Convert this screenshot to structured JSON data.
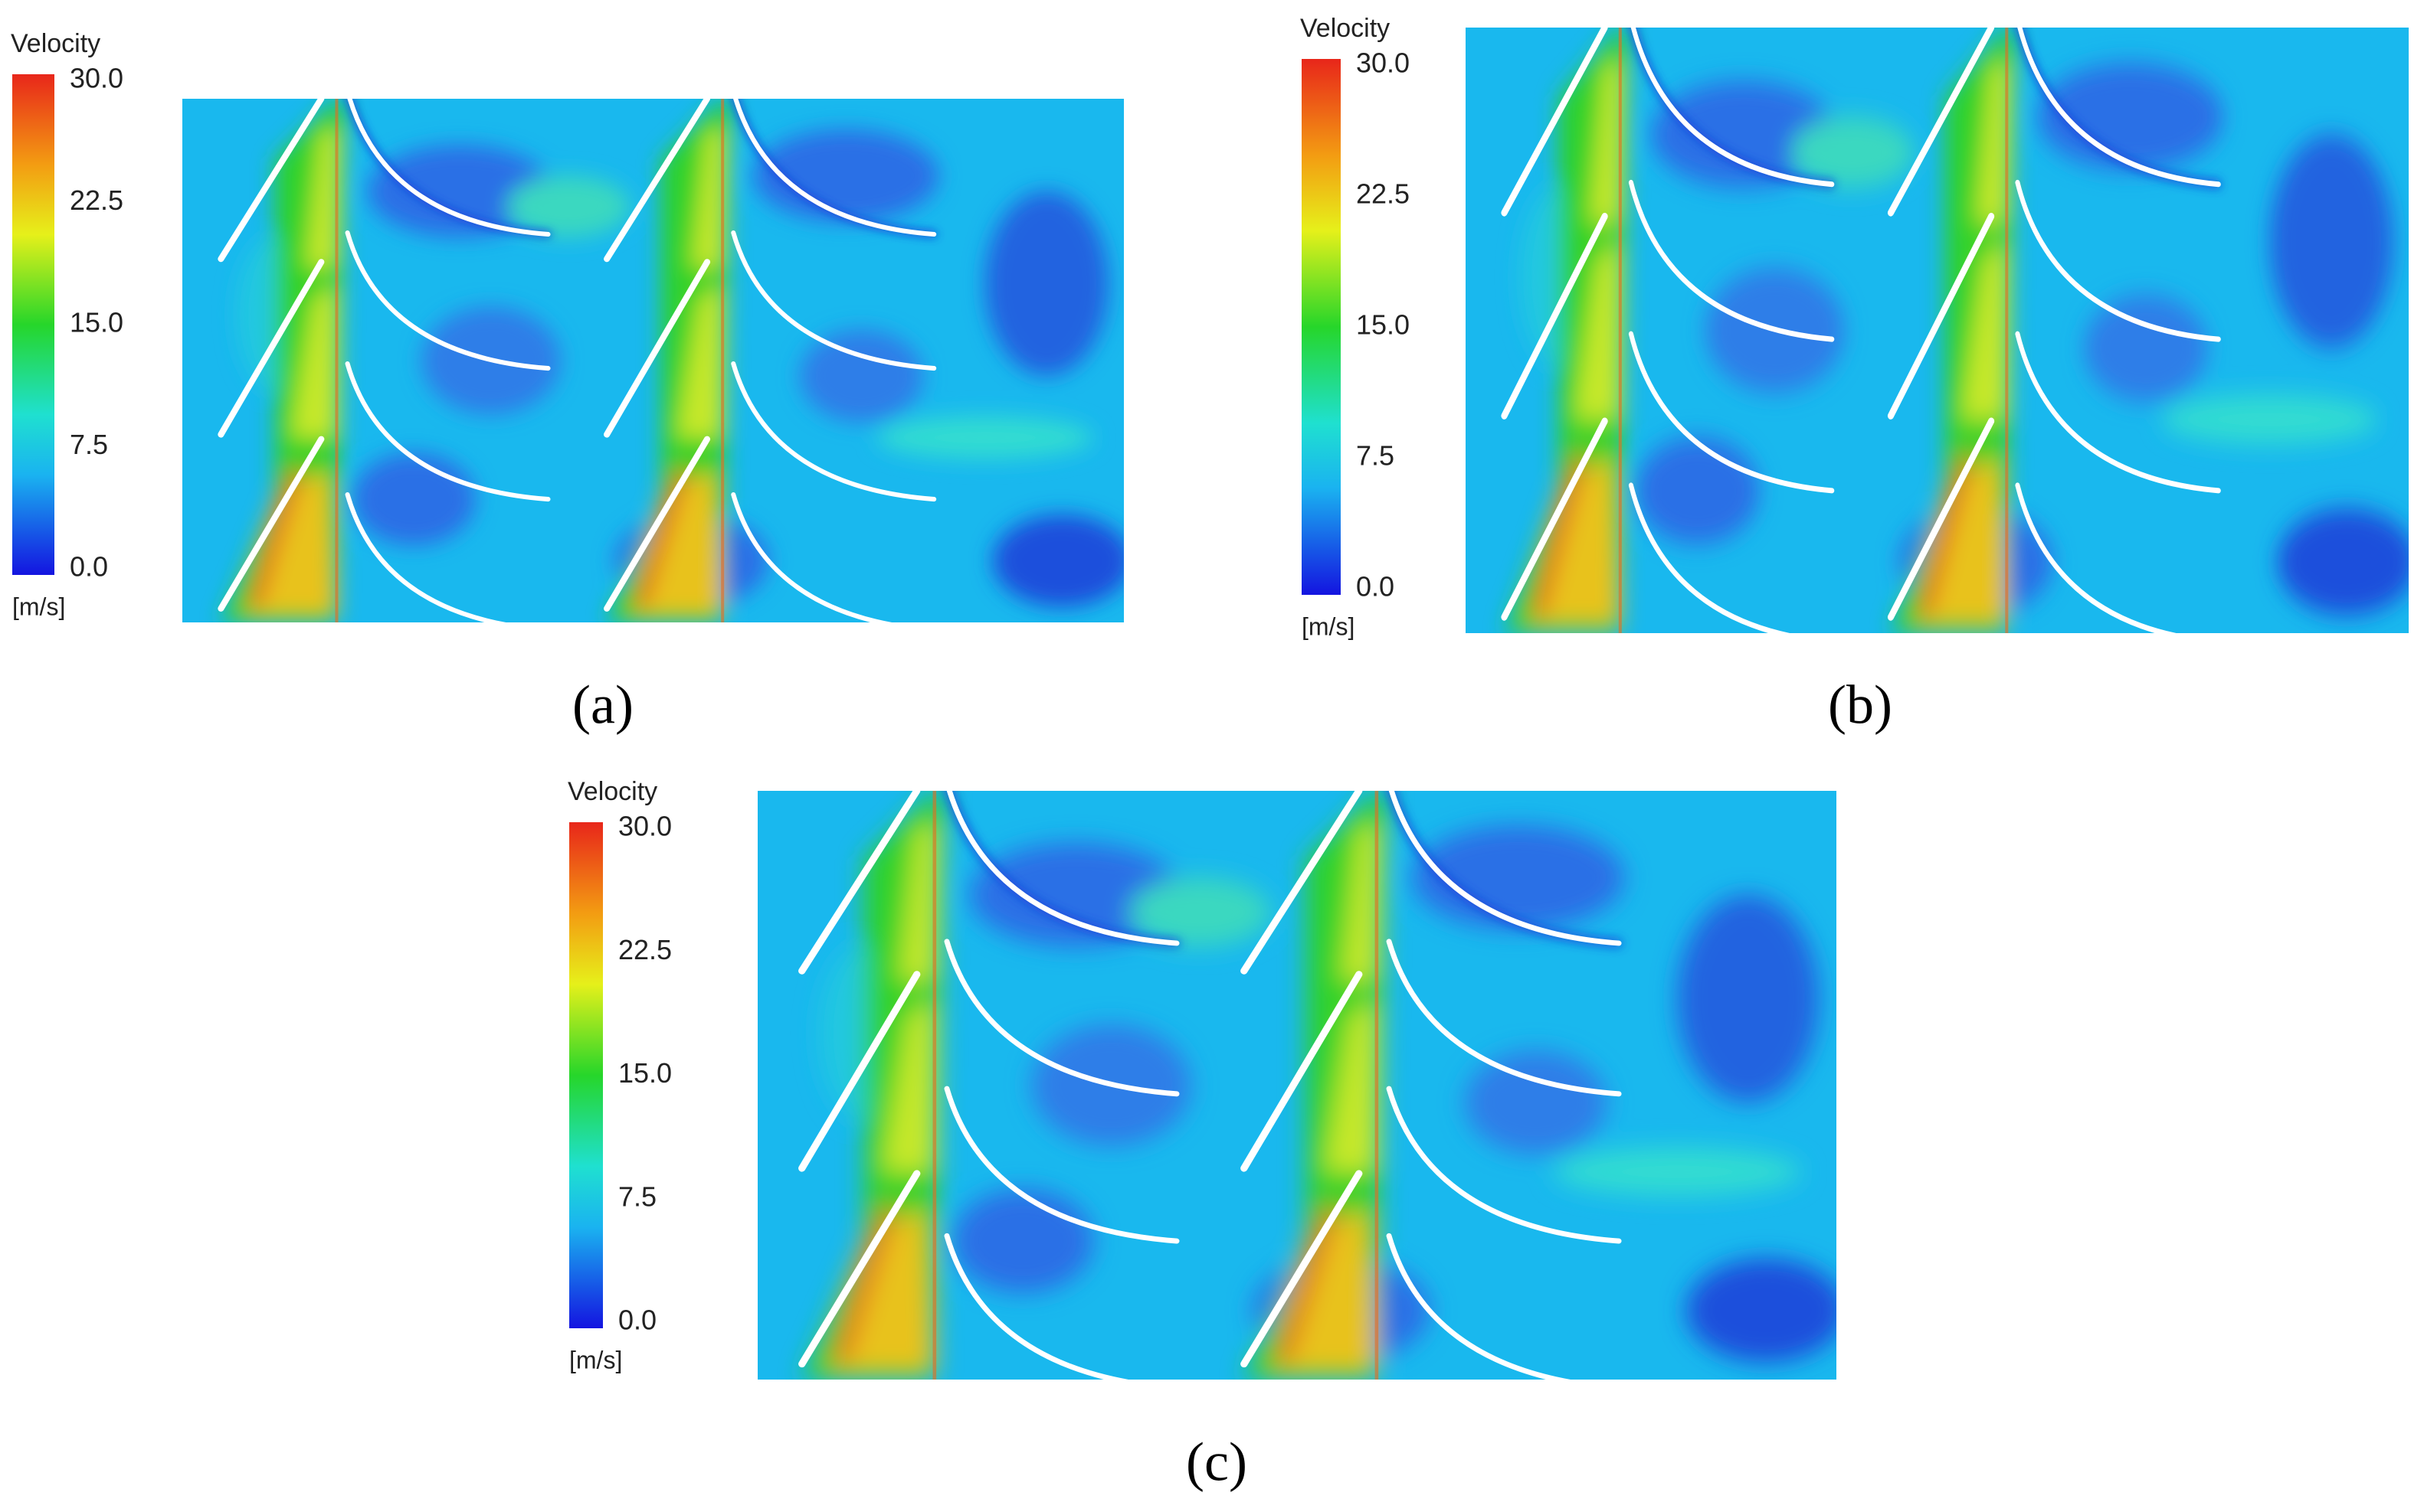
{
  "panels": [
    {
      "label": "(a)",
      "colorbar": {
        "title": "Velocity",
        "ticks": [
          "30.0",
          "22.5",
          "15.0",
          "7.5",
          "0.0"
        ],
        "unit": "[m/s]"
      }
    },
    {
      "label": "(b)",
      "colorbar": {
        "title": "Velocity",
        "ticks": [
          "30.0",
          "22.5",
          "15.0",
          "7.5",
          "0.0"
        ],
        "unit": "[m/s]"
      }
    },
    {
      "label": "(c)",
      "colorbar": {
        "title": "Velocity",
        "ticks": [
          "30.0",
          "22.5",
          "15.0",
          "7.5",
          "0.0"
        ],
        "unit": "[m/s]"
      }
    }
  ]
}
